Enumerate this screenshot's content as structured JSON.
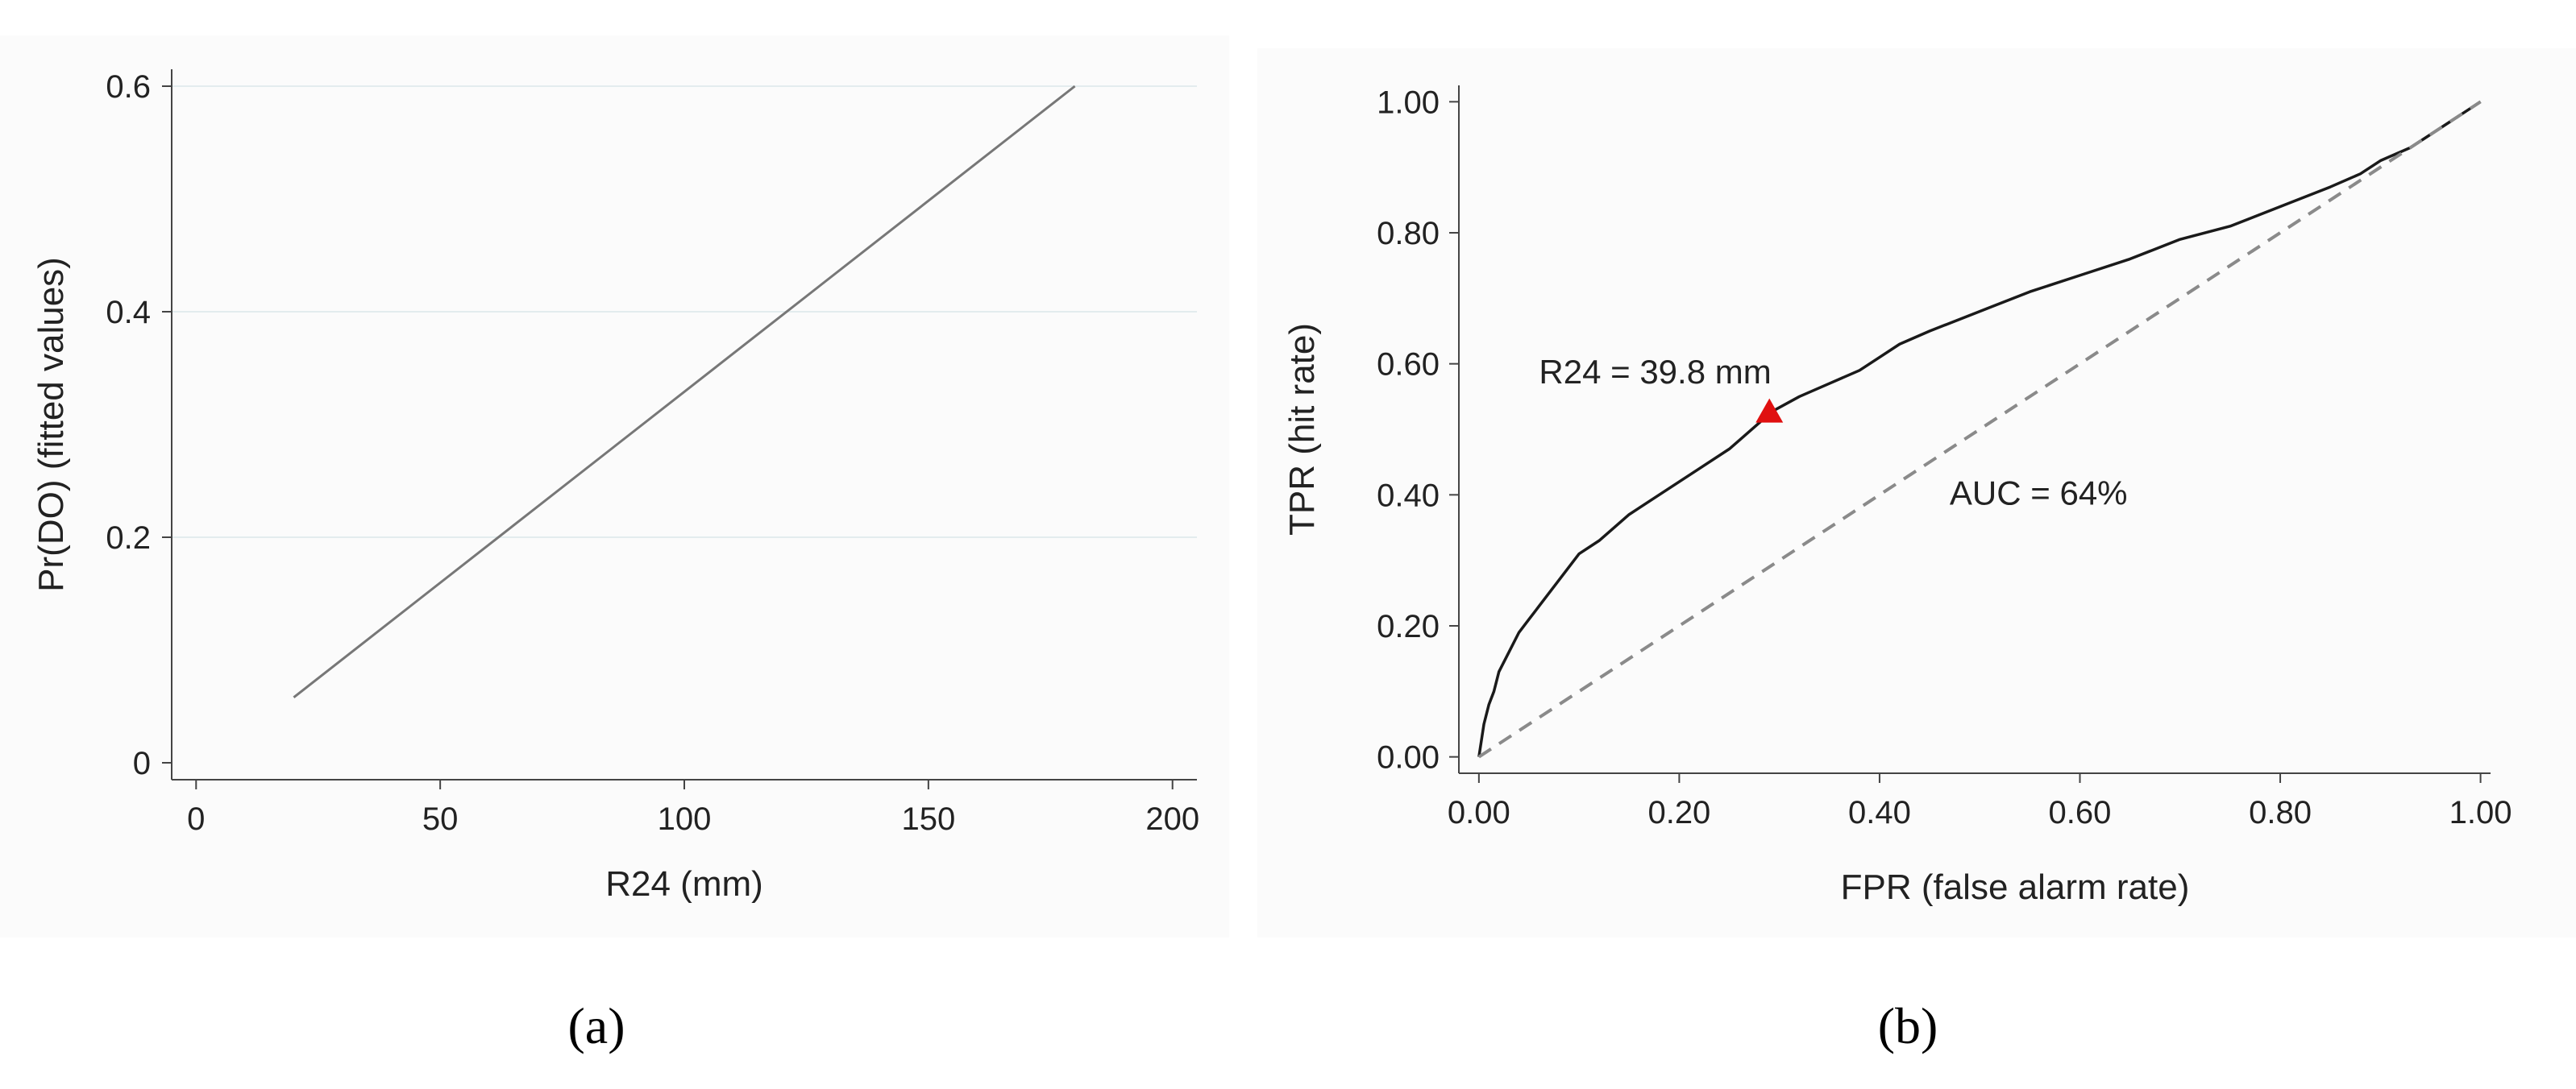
{
  "panel_labels": [
    "(a)",
    "(b)"
  ],
  "colors": {
    "axis": "#444444",
    "grid": "#e3ecee",
    "fit_line": "#777777",
    "roc_line": "#1a1a1a",
    "diagonal": "#8a8a8a",
    "marker": "#e01010",
    "panel_bg": "#fbfbfb"
  },
  "chart_data": [
    {
      "type": "line",
      "panel": "(a)",
      "xlabel": "R24 (mm)",
      "ylabel": "Pr(DO) (fitted values)",
      "xlim": [
        -5,
        205
      ],
      "ylim": [
        -0.015,
        0.615
      ],
      "x_ticks": [
        0,
        50,
        100,
        150,
        200
      ],
      "x_tick_labels": [
        "0",
        "50",
        "100",
        "150",
        "200"
      ],
      "y_ticks": [
        0,
        0.2,
        0.4,
        0.6
      ],
      "y_tick_labels": [
        "0",
        "0.2",
        "0.4",
        "0.6"
      ],
      "grid": "horizontal",
      "series": [
        {
          "x": [
            20,
            180
          ],
          "y": [
            0.058,
            0.6
          ]
        }
      ]
    },
    {
      "type": "line",
      "panel": "(b)",
      "xlabel": "FPR (false alarm rate)",
      "ylabel": "TPR (hit rate)",
      "xlim": [
        -0.02,
        1.01
      ],
      "ylim": [
        -0.025,
        1.025
      ],
      "x_ticks": [
        0,
        0.2,
        0.4,
        0.6,
        0.8,
        1.0
      ],
      "x_tick_labels": [
        "0.00",
        "0.20",
        "0.40",
        "0.60",
        "0.80",
        "1.00"
      ],
      "y_ticks": [
        0,
        0.2,
        0.4,
        0.6,
        0.8,
        1.0
      ],
      "y_tick_labels": [
        "0.00",
        "0.20",
        "0.40",
        "0.60",
        "0.80",
        "1.00"
      ],
      "grid": "none",
      "series": [
        {
          "x": [
            0,
            0.005,
            0.01,
            0.015,
            0.02,
            0.03,
            0.04,
            0.05,
            0.06,
            0.08,
            0.1,
            0.12,
            0.15,
            0.18,
            0.2,
            0.22,
            0.25,
            0.28,
            0.29,
            0.32,
            0.35,
            0.38,
            0.4,
            0.42,
            0.45,
            0.5,
            0.55,
            0.6,
            0.65,
            0.7,
            0.75,
            0.8,
            0.85,
            0.88,
            0.9,
            0.93,
            0.95,
            0.97,
            1.0
          ],
          "y": [
            0,
            0.05,
            0.08,
            0.1,
            0.13,
            0.16,
            0.19,
            0.21,
            0.23,
            0.27,
            0.31,
            0.33,
            0.37,
            0.4,
            0.42,
            0.44,
            0.47,
            0.51,
            0.525,
            0.55,
            0.57,
            0.59,
            0.61,
            0.63,
            0.65,
            0.68,
            0.71,
            0.735,
            0.76,
            0.79,
            0.81,
            0.84,
            0.87,
            0.89,
            0.91,
            0.93,
            0.95,
            0.97,
            1.0
          ]
        },
        {
          "x": [
            0,
            1
          ],
          "y": [
            0,
            1
          ],
          "style": "dashed"
        }
      ],
      "marker": {
        "x": 0.29,
        "y": 0.525,
        "shape": "triangle"
      },
      "annotations": [
        {
          "text": "R24 = 39.8 mm",
          "x": 0.06,
          "y": 0.57
        },
        {
          "text": "AUC = 64%",
          "x": 0.47,
          "y": 0.385
        }
      ]
    }
  ]
}
